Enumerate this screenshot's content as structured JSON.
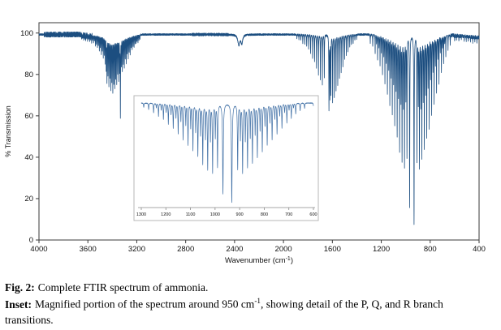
{
  "caption": {
    "fig_label": "Fig. 2:",
    "fig_text": "Complete FTIR spectrum of ammonia.",
    "inset_label": "Inset:",
    "inset_pre": "Magnified portion of the spectrum around 950 cm",
    "inset_sup": "-1",
    "inset_post": ", showing detail of the P, Q, and R branch transitions."
  },
  "chart_data": {
    "type": "line",
    "title": "",
    "xlabel": "Wavenumber (cm⁻¹)",
    "xlabel_parts": {
      "pre": "Wavenumber (cm",
      "sup": "-1",
      "post": ")"
    },
    "ylabel": "% Transmission",
    "x_axis_reversed": true,
    "xlim": [
      4000,
      400
    ],
    "ylim": [
      0,
      105
    ],
    "x_ticks": [
      4000,
      3600,
      3200,
      2800,
      2400,
      2000,
      1600,
      1200,
      800,
      400
    ],
    "y_ticks": [
      0,
      20,
      40,
      60,
      80,
      100
    ],
    "grid": false,
    "legend": false,
    "line_color": "#1c4e80",
    "baseline_transmission": 99.3,
    "peaks_schema": [
      "center_wavenumber",
      "dip_depth_percent",
      "halfwidth"
    ],
    "peaks": [
      [
        3650,
        2,
        1.2
      ],
      [
        3642,
        1.5,
        1.2
      ],
      [
        3634,
        2,
        1.2
      ],
      [
        3626,
        1.6,
        1.2
      ],
      [
        3618,
        2.2,
        1.2
      ],
      [
        3610,
        1.8,
        1.2
      ],
      [
        3602,
        2.5,
        1.2
      ],
      [
        3594,
        2,
        1.2
      ],
      [
        3586,
        3,
        1.2
      ],
      [
        3578,
        2.4,
        1.2
      ],
      [
        3570,
        3.5,
        1.2
      ],
      [
        3562,
        2.8,
        1.2
      ],
      [
        3554,
        4,
        1.2
      ],
      [
        3546,
        3.2,
        1.2
      ],
      [
        3538,
        5,
        1.2
      ],
      [
        3530,
        4,
        1.2
      ],
      [
        3522,
        6,
        1.2
      ],
      [
        3514,
        5,
        1.2
      ],
      [
        3506,
        7.5,
        1.2
      ],
      [
        3498,
        6,
        1.2
      ],
      [
        3490,
        9,
        1.2
      ],
      [
        3482,
        7,
        1.2
      ],
      [
        3474,
        11,
        1.2
      ],
      [
        3466,
        9,
        1.2
      ],
      [
        3458,
        13,
        1.2
      ],
      [
        3450,
        16,
        1.2
      ],
      [
        3444,
        22,
        1.3
      ],
      [
        3436,
        18,
        1.2
      ],
      [
        3428,
        24,
        1.3
      ],
      [
        3420,
        19,
        1.2
      ],
      [
        3412,
        26,
        1.3
      ],
      [
        3404,
        21,
        1.2
      ],
      [
        3396,
        27,
        1.3
      ],
      [
        3388,
        22,
        1.2
      ],
      [
        3380,
        25,
        1.2
      ],
      [
        3372,
        20,
        1.2
      ],
      [
        3364,
        23,
        1.2
      ],
      [
        3356,
        18,
        1.2
      ],
      [
        3348,
        21,
        1.2
      ],
      [
        3340,
        16,
        1.2
      ],
      [
        3334,
        39,
        1.4
      ],
      [
        3326,
        14,
        1.2
      ],
      [
        3318,
        17,
        1.2
      ],
      [
        3310,
        13,
        1.2
      ],
      [
        3302,
        15,
        1.2
      ],
      [
        3294,
        11,
        1.2
      ],
      [
        3286,
        13,
        1.2
      ],
      [
        3278,
        9,
        1.2
      ],
      [
        3270,
        11,
        1.2
      ],
      [
        3262,
        8,
        1.2
      ],
      [
        3254,
        9,
        1.2
      ],
      [
        3246,
        6,
        1.2
      ],
      [
        3238,
        7,
        1.2
      ],
      [
        3230,
        5,
        1.2
      ],
      [
        3222,
        5.5,
        1.2
      ],
      [
        3214,
        4,
        1.2
      ],
      [
        3206,
        4.5,
        1.2
      ],
      [
        3198,
        3,
        1.2
      ],
      [
        3190,
        3.5,
        1.2
      ],
      [
        3182,
        2.5,
        1.2
      ],
      [
        3174,
        2,
        1.2
      ],
      [
        2365,
        5,
        10
      ],
      [
        2341,
        4,
        8
      ],
      [
        1890,
        2,
        1.2
      ],
      [
        1874,
        2.5,
        1.2
      ],
      [
        1858,
        3,
        1.2
      ],
      [
        1842,
        4,
        1.2
      ],
      [
        1826,
        5,
        1.2
      ],
      [
        1810,
        6,
        1.2
      ],
      [
        1794,
        7,
        1.2
      ],
      [
        1778,
        9,
        1.2
      ],
      [
        1762,
        11,
        1.2
      ],
      [
        1746,
        13,
        1.2
      ],
      [
        1730,
        16,
        1.2
      ],
      [
        1714,
        19,
        1.2
      ],
      [
        1698,
        22,
        1.2
      ],
      [
        1682,
        24,
        1.2
      ],
      [
        1666,
        21,
        1.2
      ],
      [
        1628,
        36,
        1.5
      ],
      [
        1620,
        30,
        1.3
      ],
      [
        1612,
        28,
        1.2
      ],
      [
        1598,
        32,
        1.3
      ],
      [
        1584,
        30,
        1.3
      ],
      [
        1570,
        27,
        1.2
      ],
      [
        1556,
        24,
        1.2
      ],
      [
        1542,
        21,
        1.2
      ],
      [
        1528,
        18,
        1.2
      ],
      [
        1514,
        15,
        1.2
      ],
      [
        1500,
        12,
        1.2
      ],
      [
        1486,
        10,
        1.2
      ],
      [
        1472,
        8,
        1.2
      ],
      [
        1458,
        6,
        1.2
      ],
      [
        1444,
        5,
        1.2
      ],
      [
        1430,
        4,
        1.2
      ],
      [
        1416,
        3,
        1.2
      ],
      [
        1402,
        2,
        1.2
      ],
      [
        1290,
        4,
        1.2
      ],
      [
        1270,
        6,
        1.2
      ],
      [
        1250,
        9,
        1.2
      ],
      [
        1239,
        4,
        1.2
      ],
      [
        1230,
        12,
        1.2
      ],
      [
        1219,
        6,
        1.2
      ],
      [
        1210,
        15,
        1.2
      ],
      [
        1199,
        8,
        1.2
      ],
      [
        1190,
        19,
        1.2
      ],
      [
        1179,
        10,
        1.2
      ],
      [
        1170,
        23,
        1.3
      ],
      [
        1159,
        13,
        1.2
      ],
      [
        1150,
        28,
        1.3
      ],
      [
        1139,
        16,
        1.2
      ],
      [
        1130,
        33,
        1.3
      ],
      [
        1119,
        19,
        1.2
      ],
      [
        1110,
        38,
        1.3
      ],
      [
        1099,
        22,
        1.2
      ],
      [
        1090,
        43,
        1.3
      ],
      [
        1079,
        25,
        1.2
      ],
      [
        1070,
        48,
        1.4
      ],
      [
        1059,
        28,
        1.2
      ],
      [
        1050,
        55,
        1.4
      ],
      [
        1039,
        31,
        1.2
      ],
      [
        1030,
        60,
        1.4
      ],
      [
        1019,
        33,
        1.2
      ],
      [
        1010,
        63,
        1.4
      ],
      [
        999,
        30,
        1.2
      ],
      [
        990,
        58,
        1.4
      ],
      [
        968,
        83,
        1.7
      ],
      [
        932,
        91,
        1.8
      ],
      [
        908,
        60,
        1.4
      ],
      [
        897,
        32,
        1.2
      ],
      [
        888,
        63,
        1.4
      ],
      [
        877,
        33,
        1.2
      ],
      [
        868,
        58,
        1.4
      ],
      [
        857,
        30,
        1.2
      ],
      [
        848,
        54,
        1.4
      ],
      [
        837,
        27,
        1.2
      ],
      [
        828,
        49,
        1.4
      ],
      [
        817,
        24,
        1.2
      ],
      [
        808,
        44,
        1.3
      ],
      [
        797,
        20,
        1.2
      ],
      [
        788,
        38,
        1.3
      ],
      [
        777,
        17,
        1.2
      ],
      [
        768,
        33,
        1.3
      ],
      [
        757,
        14,
        1.2
      ],
      [
        748,
        28,
        1.3
      ],
      [
        737,
        11,
        1.2
      ],
      [
        728,
        23,
        1.2
      ],
      [
        717,
        8,
        1.2
      ],
      [
        708,
        18,
        1.2
      ],
      [
        699,
        6,
        1.2
      ],
      [
        690,
        14,
        1.2
      ],
      [
        681,
        4,
        1.2
      ],
      [
        672,
        10,
        1.2
      ],
      [
        654,
        7,
        1.2
      ],
      [
        636,
        5,
        1.2
      ],
      [
        600,
        2.5,
        1
      ],
      [
        585,
        2,
        1
      ],
      [
        565,
        2.5,
        1
      ],
      [
        545,
        2,
        1
      ],
      [
        522,
        3,
        1
      ],
      [
        505,
        2,
        1
      ],
      [
        488,
        2.5,
        1
      ],
      [
        470,
        2,
        1
      ],
      [
        452,
        2.5,
        1
      ],
      [
        435,
        2,
        1
      ],
      [
        418,
        2.5,
        1
      ]
    ],
    "inset": {
      "xlim": [
        1300,
        600
      ],
      "x_ticks": [
        1300,
        1200,
        1100,
        1000,
        900,
        800,
        700,
        600
      ],
      "line_color": "#3f6fa5"
    }
  }
}
